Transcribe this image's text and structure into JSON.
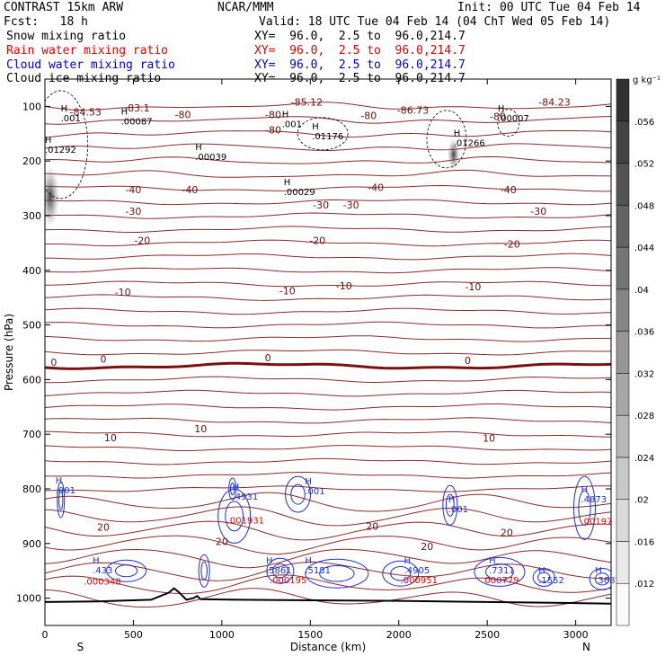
{
  "header": {
    "model": "CONTRAST 15km ARW",
    "org": "NCAR/MMM",
    "init": "Init: 00 UTC Tue 04 Feb 14",
    "fcst": "Fcst:   18 h",
    "valid": "Valid: 18 UTC Tue 04 Feb 14 (04 ChT Wed 05 Feb 14)",
    "fields": [
      {
        "name": "Snow mixing ratio",
        "xy": "XY=  96.0,  2.5 to  96.0,214.7",
        "color": "#000000"
      },
      {
        "name": "Rain water mixing ratio",
        "xy": "XY=  96.0,  2.5 to  96.0,214.7",
        "color": "#e00000"
      },
      {
        "name": "Cloud water mixing ratio",
        "xy": "XY=  96.0,  2.5 to  96.0,214.7",
        "color": "#0000cc"
      },
      {
        "name": "Cloud ice mixing ratio",
        "xy": "XY=  96.0,  2.5 to  96.0,214.7",
        "color": "#000000"
      }
    ]
  },
  "chart_data": {
    "type": "cross-section",
    "xlabel": "Distance (km)",
    "ylabel": "Pressure (hPa)",
    "xlim": [
      0,
      3200
    ],
    "ylim": [
      1050,
      50
    ],
    "xticks": [
      0,
      500,
      1000,
      1500,
      2000,
      2500,
      3000
    ],
    "yticks": [
      100,
      200,
      300,
      400,
      500,
      600,
      700,
      800,
      900,
      1000
    ],
    "endpoints": {
      "left": "S",
      "right": "N"
    },
    "colorbar": {
      "unit": "g kg⁻¹",
      "levels": [
        0.012,
        0.016,
        0.02,
        0.024,
        0.028,
        0.032,
        0.036,
        0.04,
        0.044,
        0.048,
        0.052,
        0.056
      ],
      "labels": [
        ".012",
        ".016",
        ".02",
        ".024",
        ".028",
        ".032",
        ".036",
        ".04",
        ".044",
        ".048",
        ".052",
        ".056"
      ]
    },
    "temperature_contours": [
      {
        "value": -80,
        "pressure": 128
      },
      {
        "value": -40,
        "pressure": 255
      },
      {
        "value": -30,
        "pressure": 285
      },
      {
        "value": -20,
        "pressure": 335
      },
      {
        "value": -10,
        "pressure": 440
      },
      {
        "value": 0,
        "pressure": 565,
        "bold": true
      },
      {
        "value": 10,
        "pressure": 705
      },
      {
        "value": 20,
        "pressure": 875
      }
    ],
    "temperature_labels": [
      {
        "text": "-84.53",
        "x": 230,
        "p": 110
      },
      {
        "text": "-83.1",
        "x": 520,
        "p": 103
      },
      {
        "text": "-85.12",
        "x": 1480,
        "p": 92
      },
      {
        "text": "-86.73",
        "x": 2080,
        "p": 107
      },
      {
        "text": "-84.23",
        "x": 2880,
        "p": 92
      },
      {
        "text": "-80",
        "x": 780,
        "p": 115
      },
      {
        "text": "-80",
        "x": 1290,
        "p": 115
      },
      {
        "text": "-80",
        "x": 1830,
        "p": 117
      },
      {
        "text": "-80",
        "x": 2560,
        "p": 118
      },
      {
        "text": "-80",
        "x": 1290,
        "p": 143
      },
      {
        "text": "-40",
        "x": 500,
        "p": 252
      },
      {
        "text": "-40",
        "x": 820,
        "p": 252
      },
      {
        "text": "-40",
        "x": 1870,
        "p": 248
      },
      {
        "text": "-40",
        "x": 2620,
        "p": 252
      },
      {
        "text": "-30",
        "x": 500,
        "p": 292
      },
      {
        "text": "-30",
        "x": 1560,
        "p": 280
      },
      {
        "text": "-30",
        "x": 1730,
        "p": 280
      },
      {
        "text": "-30",
        "x": 2790,
        "p": 292
      },
      {
        "text": "-20",
        "x": 550,
        "p": 345
      },
      {
        "text": "-20",
        "x": 1540,
        "p": 345
      },
      {
        "text": "-20",
        "x": 2640,
        "p": 352
      },
      {
        "text": "-10",
        "x": 440,
        "p": 440
      },
      {
        "text": "-10",
        "x": 1370,
        "p": 437
      },
      {
        "text": "-10",
        "x": 1690,
        "p": 428
      },
      {
        "text": "-10",
        "x": 2420,
        "p": 430
      },
      {
        "text": "0",
        "x": 50,
        "p": 568
      },
      {
        "text": "0",
        "x": 330,
        "p": 562
      },
      {
        "text": "0",
        "x": 1260,
        "p": 560
      },
      {
        "text": "0",
        "x": 2390,
        "p": 565
      },
      {
        "text": "10",
        "x": 370,
        "p": 706
      },
      {
        "text": "10",
        "x": 880,
        "p": 690
      },
      {
        "text": "10",
        "x": 2510,
        "p": 707
      },
      {
        "text": "20",
        "x": 330,
        "p": 870
      },
      {
        "text": "20",
        "x": 1000,
        "p": 896
      },
      {
        "text": "20",
        "x": 1850,
        "p": 868
      },
      {
        "text": "20",
        "x": 2160,
        "p": 905
      },
      {
        "text": "20",
        "x": 2610,
        "p": 880
      }
    ],
    "ice_maxima": [
      {
        "value": ".001",
        "x": 120,
        "p": 122
      },
      {
        "value": ".00087",
        "x": 460,
        "p": 128
      },
      {
        "value": ".01292",
        "x": 30,
        "p": 180
      },
      {
        "value": ".00039",
        "x": 880,
        "p": 193
      },
      {
        "value": ".00029",
        "x": 1380,
        "p": 257
      },
      {
        "value": ".001",
        "x": 1370,
        "p": 133
      },
      {
        "value": ".01176",
        "x": 1540,
        "p": 155
      },
      {
        "value": ".01266",
        "x": 2340,
        "p": 168
      },
      {
        "value": ".00007",
        "x": 2590,
        "p": 122
      }
    ],
    "cloud_water_maxima": [
      {
        "value": ".001",
        "x": 90,
        "p": 803
      },
      {
        "value": ".4931",
        "x": 1090,
        "p": 815
      },
      {
        "value": ".001",
        "x": 1500,
        "p": 805
      },
      {
        "value": ".001",
        "x": 2310,
        "p": 838
      },
      {
        "value": ".4873",
        "x": 3060,
        "p": 820
      },
      {
        "value": ".433",
        "x": 300,
        "p": 950
      },
      {
        "value": ".5861",
        "x": 1280,
        "p": 950
      },
      {
        "value": ".5181",
        "x": 1500,
        "p": 950
      },
      {
        "value": ".4905",
        "x": 2060,
        "p": 950
      },
      {
        "value": ".7311",
        "x": 2540,
        "p": 950
      },
      {
        "value": ".1552",
        "x": 2820,
        "p": 968
      },
      {
        "value": ".3687",
        "x": 3140,
        "p": 968
      }
    ],
    "rain_water_maxima": [
      {
        "value": ".001931",
        "x": 1060,
        "p": 858
      },
      {
        "value": ".00197",
        "x": 3060,
        "p": 860
      },
      {
        "value": ".000348",
        "x": 250,
        "p": 970
      },
      {
        "value": ".000195",
        "x": 1300,
        "p": 968
      },
      {
        "value": ".000951",
        "x": 2040,
        "p": 968
      },
      {
        "value": ".000779",
        "x": 2500,
        "p": 968
      }
    ],
    "terrain": {
      "x": [
        0,
        300,
        600,
        700,
        730,
        760,
        800,
        840,
        860,
        880,
        1100,
        1500,
        2000,
        2500,
        3000,
        3200
      ],
      "p": [
        1007,
        1006,
        1003,
        990,
        982,
        990,
        1003,
        1000,
        996,
        1002,
        1003,
        1004,
        1005,
        1007,
        1009,
        1010
      ]
    }
  }
}
